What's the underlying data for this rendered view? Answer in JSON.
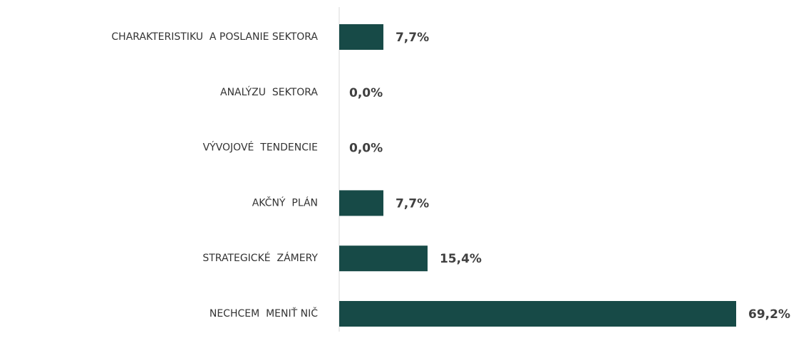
{
  "chart_data": {
    "type": "hbar",
    "categories": [
      "CHARAKTERISTIKU  A POSLANIE SEKTORA",
      "ANALÝZU  SEKTORA",
      "VÝVOJOVÉ  TENDENCIE",
      "AKČNÝ  PLÁN",
      "STRATEGICKÉ  ZÁMERY",
      "NECHCEM  MENIŤ NIČ"
    ],
    "values": [
      7.7,
      0,
      0,
      7.7,
      15.4,
      69.2
    ],
    "value_labels": [
      "7,7%",
      "0,0%",
      "0,0%",
      "7,7%",
      "15,4%",
      "69,2%"
    ],
    "color": "#174a47"
  }
}
